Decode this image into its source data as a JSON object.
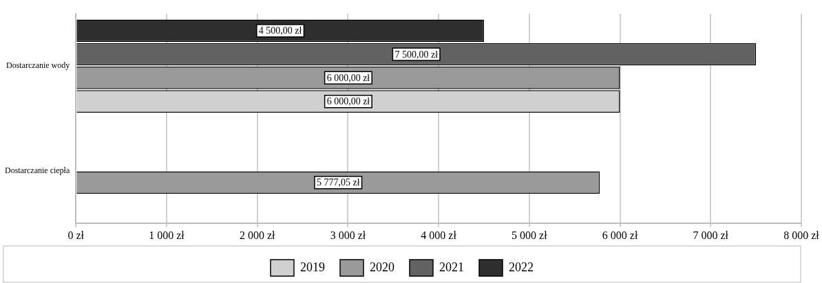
{
  "chart_data": {
    "type": "bar",
    "orientation": "horizontal",
    "categories": [
      "Dostarczanie wody",
      "Dostarczanie ciepła"
    ],
    "series": [
      {
        "name": "2019",
        "color": "#d0d0d0",
        "values": [
          6000,
          null
        ],
        "value_labels": [
          "6 000,00 zł",
          null
        ]
      },
      {
        "name": "2020",
        "color": "#9a9a9a",
        "values": [
          6000,
          5777.05
        ],
        "value_labels": [
          "6 000,00 zł",
          "5 777,05 zł"
        ]
      },
      {
        "name": "2021",
        "color": "#626262",
        "values": [
          7500,
          null
        ],
        "value_labels": [
          "7 500,00 zł",
          null
        ]
      },
      {
        "name": "2022",
        "color": "#2e2e2e",
        "values": [
          4500,
          null
        ],
        "value_labels": [
          "4 500,00 zł",
          null
        ]
      }
    ],
    "xlim": [
      0,
      8000
    ],
    "xticks": [
      {
        "value": 0,
        "label": "0 zł"
      },
      {
        "value": 1000,
        "label": "1 000 zł"
      },
      {
        "value": 2000,
        "label": "2 000 zł"
      },
      {
        "value": 3000,
        "label": "3 000 zł"
      },
      {
        "value": 4000,
        "label": "4 000 zł"
      },
      {
        "value": 5000,
        "label": "5 000 zł"
      },
      {
        "value": 6000,
        "label": "6 000 zł"
      },
      {
        "value": 7000,
        "label": "7 000 zł"
      },
      {
        "value": 8000,
        "label": "8 000 zł"
      }
    ],
    "grid": "x",
    "legend": "bottom"
  }
}
